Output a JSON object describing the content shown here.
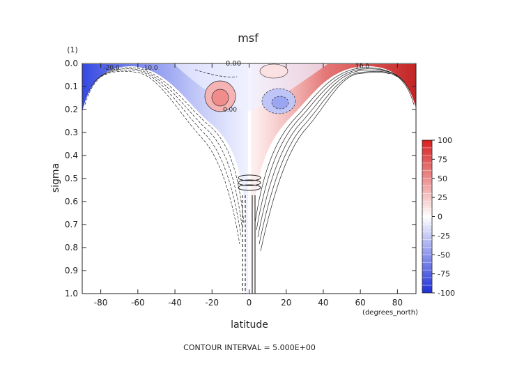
{
  "chart_data": {
    "type": "contour",
    "title": "msf",
    "xlabel": "latitude",
    "x_units": "(degrees_north)",
    "ylabel": "sigma",
    "y_units": "(1)",
    "xlim": [
      -90,
      90
    ],
    "ylim": [
      0.0,
      1.0
    ],
    "y_inverted": true,
    "x_ticks": [
      -80,
      -60,
      -40,
      -20,
      0,
      20,
      40,
      60,
      80
    ],
    "y_ticks": [
      "0.0",
      "0.1",
      "0.2",
      "0.3",
      "0.4",
      "0.5",
      "0.6",
      "0.7",
      "0.8",
      "0.9",
      "1.0"
    ],
    "colorbar": {
      "min": -100,
      "max": 100,
      "ticks": [
        100,
        75,
        50,
        25,
        0,
        -25,
        -50,
        -75,
        -100
      ],
      "colors": {
        "negative": "#1f2fd8",
        "zero": "#ffffff",
        "positive": "#d81f1f"
      }
    },
    "contour_labels": [
      "0.00",
      "-20.0",
      "-10.0",
      "10.0",
      "0.00"
    ],
    "footer": "CONTOUR INTERVAL = 5.000E+00",
    "grid": false,
    "legend": "right"
  }
}
